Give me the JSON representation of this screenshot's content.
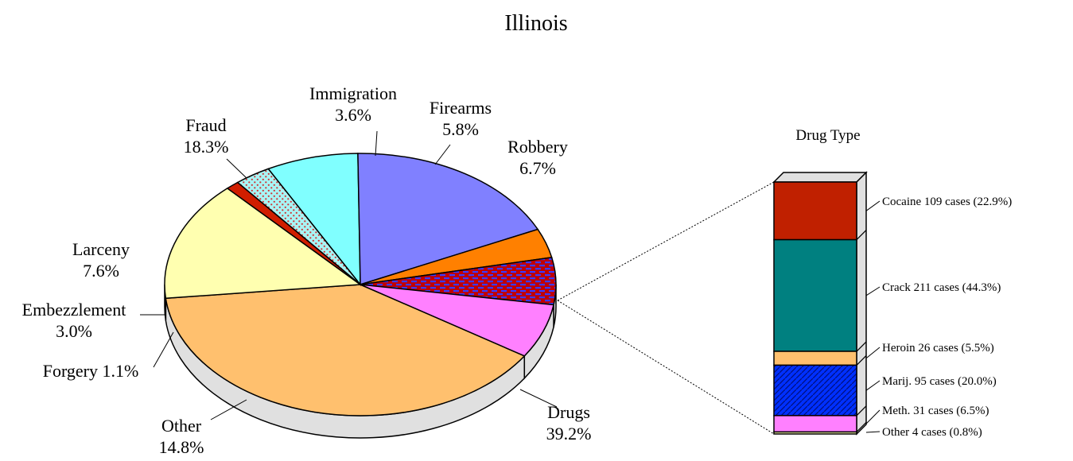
{
  "chart_data": {
    "type": "pie",
    "title": "Illinois",
    "slices": [
      {
        "label": "Drugs",
        "value": 39.2,
        "value_text": "39.2%",
        "color": "#FFC06E"
      },
      {
        "label": "Other",
        "value": 14.8,
        "value_text": "14.8%",
        "color": "#FFFFB0"
      },
      {
        "label": "Forgery",
        "value": 1.1,
        "value_text": "1.1%",
        "color": "#D01E00"
      },
      {
        "label": "Embezzlement",
        "value": 3.0,
        "value_text": "3.0%",
        "color": "#A8F4F4"
      },
      {
        "label": "Larceny",
        "value": 7.6,
        "value_text": "7.6%",
        "color": "#80FFFF"
      },
      {
        "label": "Fraud",
        "value": 18.3,
        "value_text": "18.3%",
        "color": "#8080FF"
      },
      {
        "label": "Immigration",
        "value": 3.6,
        "value_text": "3.6%",
        "color": "#FF8000"
      },
      {
        "label": "Firearms",
        "value": 5.8,
        "value_text": "5.8%",
        "color": "#C00000"
      },
      {
        "label": "Robbery",
        "value": 6.7,
        "value_text": "6.7%",
        "color": "#FF80FF"
      }
    ],
    "breakdown": {
      "type": "stacked-bar",
      "title": "Drug Type",
      "of_slice": "Drugs",
      "items": [
        {
          "name": "Cocaine",
          "cases": 109,
          "percent": 22.9,
          "label": "Cocaine 109 cases (22.9%)",
          "color": "#C02000"
        },
        {
          "name": "Crack",
          "cases": 211,
          "percent": 44.3,
          "label": "Crack 211 cases (44.3%)",
          "color": "#008080"
        },
        {
          "name": "Heroin",
          "cases": 26,
          "percent": 5.5,
          "label": "Heroin 26 cases (5.5%)",
          "color": "#FFC06E"
        },
        {
          "name": "Marij.",
          "cases": 95,
          "percent": 20.0,
          "label": "Marij. 95 cases (20.0%)",
          "color": "#0030FF"
        },
        {
          "name": "Meth.",
          "cases": 31,
          "percent": 6.5,
          "label": "Meth. 31 cases (6.5%)",
          "color": "#FF80FF"
        },
        {
          "name": "Other",
          "cases": 4,
          "percent": 0.8,
          "label": "Other  4 cases (0.8%)",
          "color": "#FFFFB0"
        }
      ]
    }
  }
}
